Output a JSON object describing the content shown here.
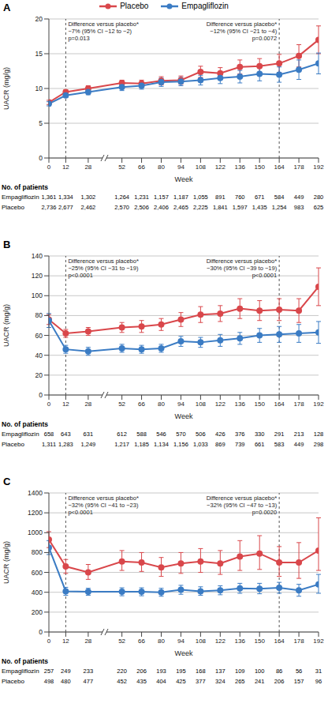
{
  "chart_data": [
    {
      "type": "line",
      "title": "A",
      "xlabel": "Week",
      "ylabel": "UACR (mg/g)",
      "legend": "top",
      "grid": true,
      "x": [
        0,
        12,
        28,
        52,
        66,
        80,
        94,
        108,
        122,
        136,
        150,
        164,
        178,
        192
      ],
      "xlim": [
        0,
        192
      ],
      "xticks": [
        0,
        12,
        28,
        52,
        66,
        80,
        94,
        108,
        122,
        136,
        150,
        164,
        178,
        192
      ],
      "ylim": [
        0,
        20
      ],
      "yticks": [
        0,
        5,
        10,
        15,
        20
      ],
      "series": [
        {
          "name": "Placebo",
          "color": "#d9474b",
          "marker": "circle",
          "values": [
            8.0,
            9.5,
            10.0,
            10.8,
            10.7,
            11.1,
            11.2,
            12.4,
            12.2,
            13.1,
            13.2,
            13.6,
            14.7,
            17.0
          ],
          "lower": [
            7.7,
            9.2,
            9.6,
            10.4,
            10.2,
            10.5,
            10.6,
            11.6,
            11.4,
            12.1,
            12.1,
            12.3,
            13.1,
            15.0
          ],
          "upper": [
            8.3,
            9.8,
            10.4,
            11.2,
            11.2,
            11.7,
            11.8,
            13.2,
            13.0,
            14.1,
            14.3,
            14.9,
            16.3,
            19.0
          ]
        },
        {
          "name": "Empagliflozin",
          "color": "#3b7cc4",
          "marker": "circle",
          "values": [
            7.8,
            9.0,
            9.5,
            10.2,
            10.4,
            10.9,
            11.0,
            11.2,
            11.5,
            11.7,
            12.1,
            12.0,
            12.7,
            13.6
          ],
          "lower": [
            7.5,
            8.7,
            9.1,
            9.7,
            9.9,
            10.3,
            10.4,
            10.5,
            10.7,
            10.8,
            11.1,
            10.9,
            11.3,
            12.1
          ],
          "upper": [
            8.1,
            9.3,
            9.9,
            10.7,
            10.9,
            11.5,
            11.6,
            11.9,
            12.3,
            12.6,
            13.1,
            13.1,
            14.1,
            15.1
          ]
        }
      ],
      "annotations": [
        {
          "x": 12,
          "text": [
            "Difference versus placebo*",
            "−7% (95% CI −12 to −2)",
            "p=0.013"
          ]
        },
        {
          "x": 164,
          "text": [
            "Difference versus placebo*",
            "−12% (95% CI −21 to −4)",
            "p=0.0072"
          ]
        }
      ],
      "patients": {
        "title": "No. of patients",
        "rows": [
          {
            "name": "Empagliflozin",
            "values": [
              "1,361",
              "1,334",
              "1,302",
              "1,264",
              "1,231",
              "1,157",
              "1,187",
              "1,055",
              "891",
              "760",
              "671",
              "584",
              "449",
              "280"
            ]
          },
          {
            "name": "Placebo",
            "values": [
              "2,736",
              "2,677",
              "2,462",
              "2,570",
              "2,506",
              "2,406",
              "2,465",
              "2,225",
              "1,841",
              "1,597",
              "1,435",
              "1,254",
              "983",
              "625"
            ]
          }
        ]
      }
    },
    {
      "type": "line",
      "title": "B",
      "xlabel": "Week",
      "ylabel": "UACR (mg/g)",
      "grid": true,
      "x": [
        0,
        12,
        28,
        52,
        66,
        80,
        94,
        108,
        122,
        136,
        150,
        164,
        178,
        192
      ],
      "xlim": [
        0,
        192
      ],
      "xticks": [
        0,
        12,
        28,
        52,
        66,
        80,
        94,
        108,
        122,
        136,
        150,
        164,
        178,
        192
      ],
      "ylim": [
        0,
        140
      ],
      "yticks": [
        0,
        20,
        40,
        60,
        80,
        100,
        120,
        140
      ],
      "series": [
        {
          "name": "Placebo",
          "color": "#d9474b",
          "marker": "circle",
          "values": [
            76,
            62,
            64,
            68,
            69,
            71,
            76,
            81,
            82,
            87,
            85,
            86,
            85,
            109
          ],
          "lower": [
            71,
            58,
            60,
            63,
            63,
            65,
            69,
            73,
            74,
            77,
            75,
            75,
            73,
            90
          ],
          "upper": [
            81,
            66,
            68,
            73,
            75,
            77,
            83,
            89,
            90,
            97,
            95,
            97,
            97,
            128
          ]
        },
        {
          "name": "Empagliflozin",
          "color": "#3b7cc4",
          "marker": "circle",
          "values": [
            75,
            46,
            44,
            47,
            46,
            47,
            54,
            53,
            55,
            57,
            60,
            61,
            62,
            63
          ],
          "lower": [
            68,
            42,
            40,
            43,
            42,
            43,
            49,
            48,
            49,
            51,
            53,
            53,
            53,
            52
          ],
          "upper": [
            82,
            50,
            48,
            51,
            50,
            51,
            59,
            58,
            61,
            63,
            67,
            69,
            71,
            74
          ]
        }
      ],
      "annotations": [
        {
          "x": 12,
          "text": [
            "Difference versus placebo*",
            "−25% (95% CI −31 to −19)",
            "p<0.0001"
          ]
        },
        {
          "x": 164,
          "text": [
            "Difference versus placebo*",
            "−30% (95% CI −39 to −19)",
            "p<0.0001"
          ]
        }
      ],
      "patients": {
        "title": "No. of patients",
        "rows": [
          {
            "name": "Empagliflozin",
            "values": [
              "658",
              "643",
              "631",
              "612",
              "588",
              "546",
              "570",
              "506",
              "426",
              "376",
              "330",
              "291",
              "213",
              "128"
            ]
          },
          {
            "name": "Placebo",
            "values": [
              "1,311",
              "1,283",
              "1,249",
              "1,217",
              "1,185",
              "1,134",
              "1,156",
              "1,033",
              "869",
              "739",
              "661",
              "583",
              "449",
              "298"
            ]
          }
        ]
      }
    },
    {
      "type": "line",
      "title": "C",
      "xlabel": "Week",
      "ylabel": "UACR (mg/g)",
      "grid": true,
      "x": [
        0,
        12,
        28,
        52,
        66,
        80,
        94,
        108,
        122,
        136,
        150,
        164,
        178,
        192
      ],
      "xlim": [
        0,
        192
      ],
      "xticks": [
        0,
        12,
        28,
        52,
        66,
        80,
        94,
        108,
        122,
        136,
        150,
        164,
        178,
        192
      ],
      "ylim": [
        0,
        1400
      ],
      "yticks": [
        0,
        200,
        400,
        600,
        800,
        1000,
        1200,
        1400
      ],
      "series": [
        {
          "name": "Placebo",
          "color": "#d9474b",
          "marker": "circle",
          "values": [
            930,
            660,
            600,
            710,
            700,
            650,
            690,
            710,
            690,
            760,
            790,
            700,
            700,
            820
          ],
          "lower": [
            850,
            590,
            530,
            620,
            610,
            560,
            590,
            600,
            580,
            620,
            630,
            560,
            540,
            620
          ],
          "upper": [
            1010,
            730,
            680,
            820,
            800,
            750,
            800,
            840,
            820,
            920,
            970,
            860,
            900,
            1150
          ]
        },
        {
          "name": "Empagliflozin",
          "color": "#3b7cc4",
          "marker": "circle",
          "values": [
            850,
            410,
            405,
            405,
            405,
            400,
            425,
            410,
            420,
            440,
            435,
            445,
            420,
            480
          ],
          "lower": [
            780,
            370,
            370,
            365,
            365,
            360,
            380,
            370,
            375,
            390,
            385,
            390,
            360,
            390
          ],
          "upper": [
            920,
            450,
            440,
            445,
            445,
            440,
            470,
            455,
            465,
            490,
            490,
            500,
            480,
            580
          ]
        }
      ],
      "annotations": [
        {
          "x": 12,
          "text": [
            "Difference versus placebo*",
            "−32% (95% CI −41 to −23)",
            "p<0.0001"
          ]
        },
        {
          "x": 164,
          "text": [
            "Difference versus placebo*",
            "−32% (95% CI −47 to −13)",
            "p=0.0020"
          ]
        }
      ],
      "patients": {
        "title": "No. of patients",
        "rows": [
          {
            "name": "Empagliflozin",
            "values": [
              "257",
              "249",
              "233",
              "220",
              "206",
              "193",
              "195",
              "168",
              "137",
              "109",
              "100",
              "86",
              "56",
              "31"
            ]
          },
          {
            "name": "Placebo",
            "values": [
              "498",
              "480",
              "477",
              "452",
              "435",
              "404",
              "425",
              "377",
              "324",
              "265",
              "241",
              "206",
              "157",
              "96"
            ]
          }
        ]
      }
    }
  ]
}
